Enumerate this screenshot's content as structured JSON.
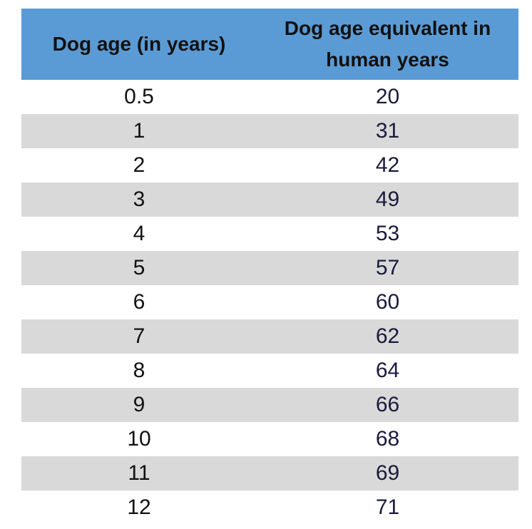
{
  "table": {
    "header": [
      "Dog age (in years)",
      "Dog age equivalent in human years"
    ],
    "rows": [
      [
        0.5,
        20
      ],
      [
        1,
        31
      ],
      [
        2,
        42
      ],
      [
        3,
        49
      ],
      [
        4,
        53
      ],
      [
        5,
        57
      ],
      [
        6,
        60
      ],
      [
        7,
        62
      ],
      [
        8,
        64
      ],
      [
        9,
        66
      ],
      [
        10,
        68
      ],
      [
        11,
        69
      ],
      [
        12,
        71
      ]
    ]
  }
}
